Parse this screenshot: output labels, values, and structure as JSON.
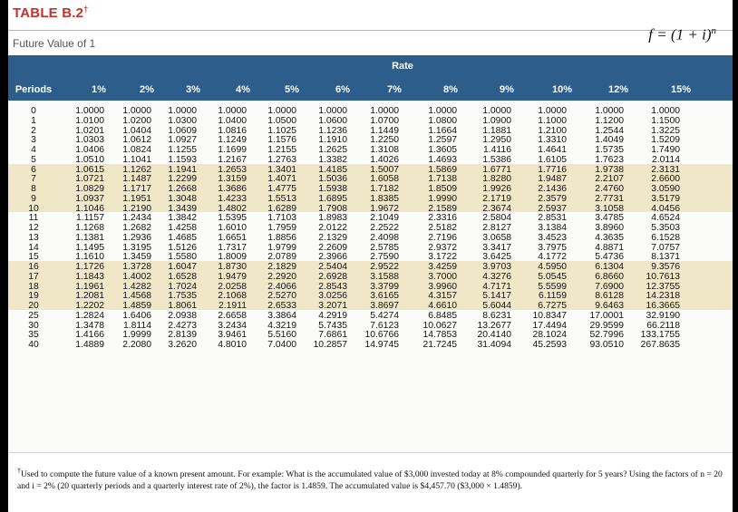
{
  "header": {
    "table_label": "TABLE B.2",
    "table_note_mark": "†",
    "subtitle": "Future Value of 1",
    "formula_base": "f = (1 + i)",
    "formula_exp": "n"
  },
  "table": {
    "group_header": "Rate",
    "periods_header": "Periods",
    "rate_headers": [
      "1%",
      "2%",
      "3%",
      "4%",
      "5%",
      "6%",
      "7%",
      "8%",
      "9%",
      "10%",
      "12%",
      "15%"
    ],
    "rows": [
      {
        "period": "0",
        "values": [
          "1.0000",
          "1.0000",
          "1.0000",
          "1.0000",
          "1.0000",
          "1.0000",
          "1.0000",
          "1.0000",
          "1.0000",
          "1.0000",
          "1.0000",
          "1.0000"
        ]
      },
      {
        "period": "1",
        "values": [
          "1.0100",
          "1.0200",
          "1.0300",
          "1.0400",
          "1.0500",
          "1.0600",
          "1.0700",
          "1.0800",
          "1.0900",
          "1.1000",
          "1.1200",
          "1.1500"
        ]
      },
      {
        "period": "2",
        "values": [
          "1.0201",
          "1.0404",
          "1.0609",
          "1.0816",
          "1.1025",
          "1.1236",
          "1.1449",
          "1.1664",
          "1.1881",
          "1.2100",
          "1.2544",
          "1.3225"
        ]
      },
      {
        "period": "3",
        "values": [
          "1.0303",
          "1.0612",
          "1.0927",
          "1.1249",
          "1.1576",
          "1.1910",
          "1.2250",
          "1.2597",
          "1.2950",
          "1.3310",
          "1.4049",
          "1.5209"
        ]
      },
      {
        "period": "4",
        "values": [
          "1.0406",
          "1.0824",
          "1.1255",
          "1.1699",
          "1.2155",
          "1.2625",
          "1.3108",
          "1.3605",
          "1.4116",
          "1.4641",
          "1.5735",
          "1.7490"
        ]
      },
      {
        "period": "5",
        "values": [
          "1.0510",
          "1.1041",
          "1.1593",
          "1.2167",
          "1.2763",
          "1.3382",
          "1.4026",
          "1.4693",
          "1.5386",
          "1.6105",
          "1.7623",
          "2.0114"
        ]
      },
      {
        "period": "6",
        "values": [
          "1.0615",
          "1.1262",
          "1.1941",
          "1.2653",
          "1.3401",
          "1.4185",
          "1.5007",
          "1.5869",
          "1.6771",
          "1.7716",
          "1.9738",
          "2.3131"
        ]
      },
      {
        "period": "7",
        "values": [
          "1.0721",
          "1.1487",
          "1.2299",
          "1.3159",
          "1.4071",
          "1.5036",
          "1.6058",
          "1.7138",
          "1.8280",
          "1.9487",
          "2.2107",
          "2.6600"
        ]
      },
      {
        "period": "8",
        "values": [
          "1.0829",
          "1.1717",
          "1.2668",
          "1.3686",
          "1.4775",
          "1.5938",
          "1.7182",
          "1.8509",
          "1.9926",
          "2.1436",
          "2.4760",
          "3.0590"
        ]
      },
      {
        "period": "9",
        "values": [
          "1.0937",
          "1.1951",
          "1.3048",
          "1.4233",
          "1.5513",
          "1.6895",
          "1.8385",
          "1.9990",
          "2.1719",
          "2.3579",
          "2.7731",
          "3.5179"
        ]
      },
      {
        "period": "10",
        "values": [
          "1.1046",
          "1.2190",
          "1.3439",
          "1.4802",
          "1.6289",
          "1.7908",
          "1.9672",
          "2.1589",
          "2.3674",
          "2.5937",
          "3.1058",
          "4.0456"
        ]
      },
      {
        "period": "11",
        "values": [
          "1.1157",
          "1.2434",
          "1.3842",
          "1.5395",
          "1.7103",
          "1.8983",
          "2.1049",
          "2.3316",
          "2.5804",
          "2.8531",
          "3.4785",
          "4.6524"
        ]
      },
      {
        "period": "12",
        "values": [
          "1.1268",
          "1.2682",
          "1.4258",
          "1.6010",
          "1.7959",
          "2.0122",
          "2.2522",
          "2.5182",
          "2.8127",
          "3.1384",
          "3.8960",
          "5.3503"
        ]
      },
      {
        "period": "13",
        "values": [
          "1.1381",
          "1.2936",
          "1.4685",
          "1.6651",
          "1.8856",
          "2.1329",
          "2.4098",
          "2.7196",
          "3.0658",
          "3.4523",
          "4.3635",
          "6.1528"
        ]
      },
      {
        "period": "14",
        "values": [
          "1.1495",
          "1.3195",
          "1.5126",
          "1.7317",
          "1.9799",
          "2.2609",
          "2.5785",
          "2.9372",
          "3.3417",
          "3.7975",
          "4.8871",
          "7.0757"
        ]
      },
      {
        "period": "15",
        "values": [
          "1.1610",
          "1.3459",
          "1.5580",
          "1.8009",
          "2.0789",
          "2.3966",
          "2.7590",
          "3.1722",
          "3.6425",
          "4.1772",
          "5.4736",
          "8.1371"
        ]
      },
      {
        "period": "16",
        "values": [
          "1.1726",
          "1.3728",
          "1.6047",
          "1.8730",
          "2.1829",
          "2.5404",
          "2.9522",
          "3.4259",
          "3.9703",
          "4.5950",
          "6.1304",
          "9.3576"
        ]
      },
      {
        "period": "17",
        "values": [
          "1.1843",
          "1.4002",
          "1.6528",
          "1.9479",
          "2.2920",
          "2.6928",
          "3.1588",
          "3.7000",
          "4.3276",
          "5.0545",
          "6.8660",
          "10.7613"
        ]
      },
      {
        "period": "18",
        "values": [
          "1.1961",
          "1.4282",
          "1.7024",
          "2.0258",
          "2.4066",
          "2.8543",
          "3.3799",
          "3.9960",
          "4.7171",
          "5.5599",
          "7.6900",
          "12.3755"
        ]
      },
      {
        "period": "19",
        "values": [
          "1.2081",
          "1.4568",
          "1.7535",
          "2.1068",
          "2.5270",
          "3.0256",
          "3.6165",
          "4.3157",
          "5.1417",
          "6.1159",
          "8.6128",
          "14.2318"
        ]
      },
      {
        "period": "20",
        "values": [
          "1.2202",
          "1.4859",
          "1.8061",
          "2.1911",
          "2.6533",
          "3.2071",
          "3.8697",
          "4.6610",
          "5.6044",
          "6.7275",
          "9.6463",
          "16.3665"
        ]
      },
      {
        "period": "25",
        "values": [
          "1.2824",
          "1.6406",
          "2.0938",
          "2.6658",
          "3.3864",
          "4.2919",
          "5.4274",
          "6.8485",
          "8.6231",
          "10.8347",
          "17.0001",
          "32.9190"
        ]
      },
      {
        "period": "30",
        "values": [
          "1.3478",
          "1.8114",
          "2.4273",
          "3.2434",
          "4.3219",
          "5.7435",
          "7.6123",
          "10.0627",
          "13.2677",
          "17.4494",
          "29.9599",
          "66.2118"
        ]
      },
      {
        "period": "35",
        "values": [
          "1.4166",
          "1.9999",
          "2.8139",
          "3.9461",
          "5.5160",
          "7.6861",
          "10.6766",
          "14.7853",
          "20.4140",
          "28.1024",
          "52.7996",
          "133.1755"
        ]
      },
      {
        "period": "40",
        "values": [
          "1.4889",
          "2.2080",
          "3.2620",
          "4.8010",
          "7.0400",
          "10.2857",
          "14.9745",
          "21.7245",
          "31.4094",
          "45.2593",
          "93.0510",
          "267.8635"
        ]
      }
    ]
  },
  "footnote": {
    "mark": "†",
    "text": "Used to compute the future value of a known present amount. For example: What is the accumulated value of $3,000 invested today at 8% compounded quarterly for 5 years? Using the factors of n = 20 and i = 2% (20 quarterly periods and a quarterly interest rate of 2%), the factor is 1.4859. The accumulated value is $4,457.70 ($3,000 × 1.4859)."
  },
  "colors": {
    "title_red": "#c8312a",
    "header_blue": "#2d5d8b",
    "band_tan": "#f0e7c8",
    "band_white": "#fbfbfa"
  }
}
